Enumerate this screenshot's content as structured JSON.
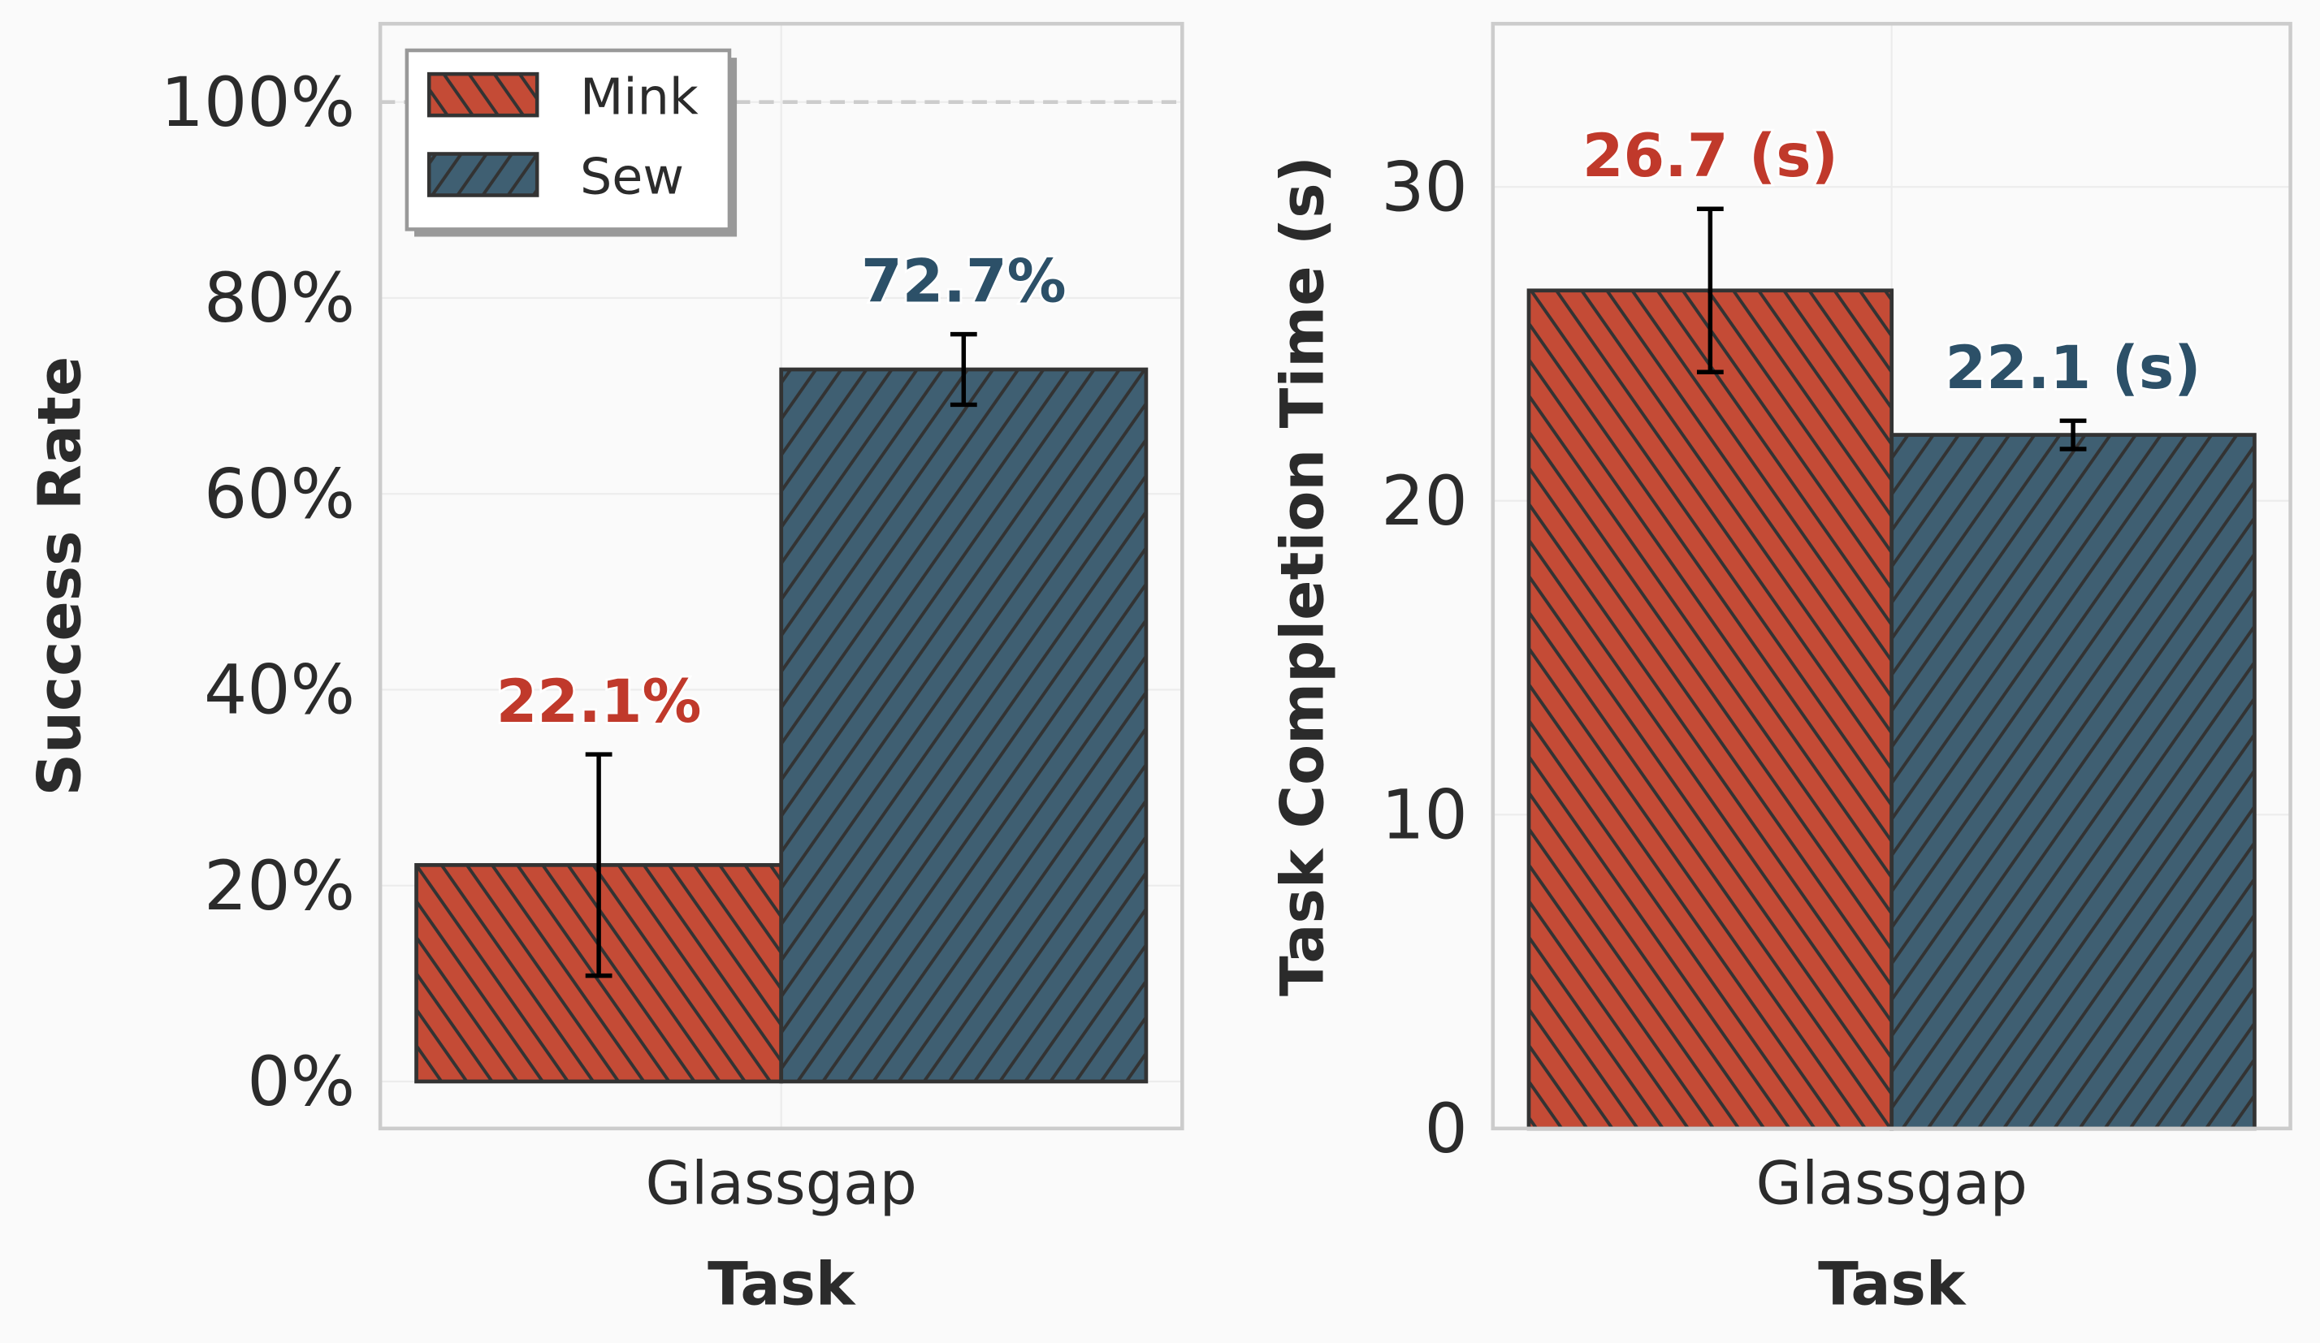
{
  "colors": {
    "Mink": "#c44b36",
    "Sew": "#3f5f72",
    "Mink_label": "#c0392b",
    "Sew_label": "#2c5068",
    "edge": "#333333",
    "background": "#fafafa"
  },
  "legend": {
    "placement": "top-left",
    "entries": [
      {
        "name": "Mink",
        "hatch": "///"
      },
      {
        "name": "Sew",
        "hatch": "\\\\\\"
      }
    ]
  },
  "chart_data": [
    {
      "type": "bar",
      "xlabel": "Task",
      "ylabel": "Success Rate",
      "categories": [
        "Glassgap"
      ],
      "ylim": [
        -4.8,
        108
      ],
      "yticks": [
        0,
        20,
        40,
        60,
        80,
        100
      ],
      "ytick_labels": [
        "0%",
        "20%",
        "40%",
        "60%",
        "80%",
        "100%"
      ],
      "reference_line": 100,
      "grid": true,
      "series": [
        {
          "name": "Mink",
          "values": [
            22.1
          ],
          "error": [
            11.3
          ],
          "labels": [
            "22.1%"
          ]
        },
        {
          "name": "Sew",
          "values": [
            72.7
          ],
          "error": [
            3.6
          ],
          "labels": [
            "72.7%"
          ]
        }
      ]
    },
    {
      "type": "bar",
      "xlabel": "Task",
      "ylabel": "Task Completion Time (s)",
      "categories": [
        "Glassgap"
      ],
      "ylim": [
        0,
        35.2
      ],
      "yticks": [
        0,
        10,
        20,
        30
      ],
      "ytick_labels": [
        "0",
        "10",
        "20",
        "30"
      ],
      "grid": true,
      "series": [
        {
          "name": "Mink",
          "values": [
            26.7
          ],
          "error": [
            2.6
          ],
          "labels": [
            "26.7 (s)"
          ]
        },
        {
          "name": "Sew",
          "values": [
            22.1
          ],
          "error": [
            0.45
          ],
          "labels": [
            "22.1 (s)"
          ]
        }
      ]
    }
  ]
}
